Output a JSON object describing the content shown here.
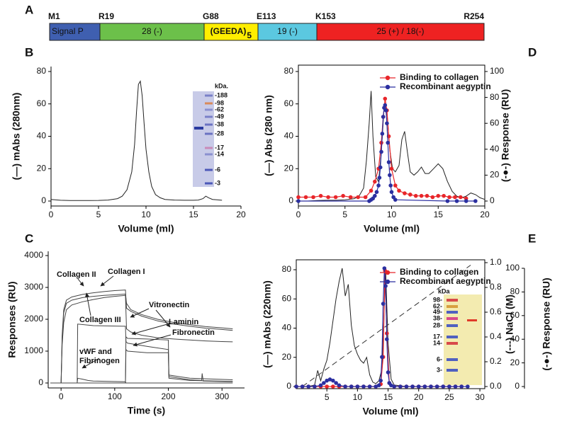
{
  "panel_labels": [
    "A",
    "B",
    "C",
    "D",
    "E"
  ],
  "domain_map": {
    "residues": [
      "M1",
      "R19",
      "G88",
      "E113",
      "K153",
      "R254"
    ],
    "domains": [
      {
        "label": "Signal P",
        "color": "#3f5fb0"
      },
      {
        "label": "28 (-)",
        "color": "#6cc04a"
      },
      {
        "label": "(GEEDA)",
        "subscript": "5",
        "color": "#ffee00"
      },
      {
        "label": "19 (-)",
        "color": "#5bc8e0"
      },
      {
        "label": "25 (+) / 18(-)",
        "color": "#ee2222"
      }
    ]
  },
  "chart_data": [
    {
      "type": "line",
      "xlabel": "Volume (ml)",
      "ylabel": "(—) mAbs (280nm)",
      "xlim": [
        0,
        20
      ],
      "xticks": [
        0,
        5,
        10,
        15,
        20
      ],
      "ylim": [
        0,
        80
      ],
      "yticks": [
        0,
        20,
        40,
        60,
        80
      ],
      "series": [
        {
          "color": "#222222",
          "x": [
            0,
            1,
            2,
            3,
            4,
            5,
            6,
            7,
            7.5,
            8,
            8.5,
            8.8,
            9,
            9.2,
            9.4,
            9.6,
            9.8,
            10,
            10.3,
            10.6,
            11,
            11.5,
            12,
            13,
            14,
            15,
            15.5,
            16,
            16.3,
            16.6,
            17,
            17.5,
            18
          ],
          "values": [
            1,
            0.5,
            0.3,
            0.3,
            0.3,
            0.4,
            0.6,
            1.5,
            3,
            7,
            18,
            35,
            55,
            72,
            74,
            65,
            48,
            32,
            18,
            9,
            4,
            2,
            1,
            0.6,
            0.5,
            0.5,
            0.6,
            1.5,
            3,
            2,
            1,
            0.8,
            0.5
          ]
        }
      ],
      "inset": {
        "title": "kDa.",
        "markers": [
          "-188",
          "-98",
          "-62",
          "-49",
          "-38",
          "-28",
          "-17",
          "-14",
          "-6",
          "-3"
        ]
      }
    },
    {
      "type": "line",
      "xlabel": "Volume (ml)",
      "ylabel": "(—) Abs (280 nm)",
      "y2label": "(-●-) Response (RU)",
      "xlim": [
        0,
        20
      ],
      "xticks": [
        0,
        5,
        10,
        15,
        20
      ],
      "ylim": [
        0,
        80
      ],
      "yticks": [
        0,
        20,
        40,
        60,
        80
      ],
      "y2lim": [
        0,
        100
      ],
      "y2ticks": [
        0,
        20,
        40,
        60,
        80,
        100
      ],
      "legend": "top-right",
      "series": [
        {
          "color": "#222222",
          "x": [
            0,
            1,
            2,
            3,
            4,
            5,
            6,
            6.5,
            7,
            7.3,
            7.6,
            7.8,
            8,
            8.3,
            8.6,
            8.9,
            9.2,
            9.5,
            9.8,
            10.1,
            10.4,
            10.8,
            11.1,
            11.4,
            11.7,
            12,
            12.4,
            12.8,
            13.2,
            13.6,
            14,
            14.5,
            15,
            15.5,
            16,
            16.5,
            17,
            17.5,
            18,
            18.5,
            19,
            19.5,
            20
          ],
          "values": [
            0,
            0,
            0.3,
            0.5,
            0.5,
            0.8,
            1.5,
            3,
            8,
            25,
            48,
            68,
            40,
            15,
            12,
            30,
            58,
            55,
            32,
            20,
            18,
            22,
            38,
            43,
            30,
            18,
            16,
            18,
            21,
            17,
            17,
            20,
            23,
            20,
            12,
            6,
            3,
            2,
            3,
            5,
            4,
            2,
            1
          ]
        },
        {
          "name": "Binding to collagen",
          "color": "#e8262a",
          "axis": "y2",
          "marker": "circle",
          "x": [
            0,
            0.8,
            1.6,
            2.4,
            3.2,
            4,
            4.8,
            5.6,
            6.4,
            7.2,
            7.8,
            8.2,
            8.6,
            8.9,
            9.1,
            9.3,
            9.5,
            9.7,
            10,
            10.4,
            10.8,
            11.4,
            12,
            12.6,
            13.2,
            13.8,
            14.4,
            15,
            15.6,
            16.2,
            16.8,
            17.4,
            18
          ],
          "values": [
            3,
            3,
            3,
            4,
            3,
            3,
            4,
            3,
            3,
            3,
            8,
            15,
            25,
            45,
            65,
            79,
            70,
            50,
            25,
            12,
            8,
            6,
            5,
            4,
            4,
            4,
            3,
            4,
            4,
            3,
            3,
            3,
            2
          ]
        },
        {
          "name": "Recombinant aegyptin",
          "color": "#2b2fa0",
          "axis": "y2",
          "marker": "circle",
          "x": [
            0,
            7.6,
            7.8,
            8,
            8.2,
            8.4,
            8.6,
            8.7,
            8.8,
            8.9,
            9,
            9.1,
            9.2,
            9.3,
            9.4,
            9.5,
            9.6,
            9.7,
            9.8,
            9.9,
            10,
            10.2,
            10.4,
            16,
            17,
            18,
            19
          ],
          "values": [
            0,
            0,
            1,
            2,
            4,
            7,
            12,
            18,
            26,
            38,
            52,
            65,
            72,
            74,
            70,
            60,
            45,
            30,
            20,
            12,
            7,
            3,
            1,
            0,
            0,
            0,
            0
          ]
        }
      ]
    },
    {
      "type": "line",
      "xlabel": "Time (s)",
      "ylabel": "Responses (RU)",
      "xlim": [
        -24,
        342
      ],
      "xticks": [
        0,
        100,
        200,
        300
      ],
      "ylim": [
        0,
        4000
      ],
      "yticks": [
        0,
        1000,
        2000,
        3000,
        4000
      ],
      "series": [
        {
          "name": "Collagen I",
          "color": "#444444",
          "x": [
            -20,
            0,
            2,
            5,
            10,
            20,
            40,
            60,
            80,
            100,
            120,
            122,
            130,
            150,
            180,
            210,
            240,
            270,
            300,
            320
          ],
          "values": [
            0,
            0,
            1500,
            2300,
            2600,
            2700,
            2780,
            2830,
            2870,
            2900,
            2920,
            2350,
            2250,
            2100,
            1950,
            1850,
            1780,
            1720,
            1680,
            1650
          ]
        },
        {
          "name": "Collagen II",
          "color": "#444444",
          "x": [
            -20,
            0,
            2,
            5,
            10,
            20,
            40,
            60,
            80,
            100,
            120,
            122,
            130,
            150,
            180,
            210,
            240,
            270,
            300,
            320
          ],
          "values": [
            0,
            0,
            1400,
            2200,
            2500,
            2600,
            2680,
            2720,
            2750,
            2770,
            2790,
            2500,
            2300,
            2150,
            2000,
            1900,
            1830,
            1770,
            1730,
            1700
          ]
        },
        {
          "name": "Collagen III",
          "color": "#444444",
          "x": [
            -20,
            0,
            2,
            5,
            10,
            20,
            40,
            60,
            80,
            100,
            120,
            122,
            130,
            150,
            180,
            210,
            240,
            270,
            300,
            320
          ],
          "values": [
            0,
            0,
            1200,
            1900,
            2300,
            2450,
            2550,
            2620,
            2680,
            2720,
            2750,
            1700,
            1600,
            1500,
            1420,
            1380,
            1350,
            1320,
            1300,
            1290
          ]
        },
        {
          "name": "Vitronectin",
          "color": "#444444",
          "x": [
            -20,
            120,
            121,
            124,
            160,
            200,
            201,
            240,
            320
          ],
          "values": [
            0,
            0,
            1450,
            1400,
            1380,
            1350,
            250,
            150,
            100
          ]
        },
        {
          "name": "Laminin",
          "color": "#444444",
          "x": [
            -20,
            30,
            31,
            60,
            120,
            121,
            124,
            160,
            200,
            201,
            240,
            262,
            263,
            265,
            320
          ],
          "values": [
            0,
            0,
            1850,
            1800,
            1780,
            1300,
            1250,
            1150,
            1050,
            200,
            100,
            80,
            300,
            60,
            40
          ]
        },
        {
          "name": "Fibronectin",
          "color": "#444444",
          "x": [
            -20,
            120,
            121,
            124,
            160,
            200,
            201,
            240,
            320
          ],
          "values": [
            0,
            0,
            1050,
            1000,
            950,
            950,
            150,
            80,
            50
          ]
        },
        {
          "name": "vWF and Fibrinogen",
          "color": "#444444",
          "x": [
            -20,
            30,
            31,
            40,
            50,
            60,
            120,
            121,
            200,
            320
          ],
          "values": [
            0,
            0,
            150,
            120,
            80,
            60,
            40,
            0,
            0,
            0
          ]
        }
      ]
    },
    {
      "type": "line",
      "xlabel": "Volume (ml)",
      "ylabel": "(—) mAbs (220nm)",
      "y2label": "(---) NaCl (M)",
      "y3label": "(-●-) Response (RU)",
      "xlim": [
        0,
        30.8
      ],
      "xticks": [
        5,
        10,
        15,
        20,
        25,
        30
      ],
      "ylim": [
        0,
        80
      ],
      "yticks": [
        0,
        20,
        40,
        60,
        80
      ],
      "y2lim": [
        0,
        1
      ],
      "y2ticks": [
        {
          "value": 0,
          "label": "0.0"
        },
        0.2,
        0.4,
        0.6,
        0.8,
        {
          "value": 1,
          "label": "1.0"
        }
      ],
      "y3lim": [
        0,
        100
      ],
      "y3ticks": [
        0,
        20,
        40,
        60,
        80,
        100
      ],
      "legend": "top-right",
      "series": [
        {
          "color": "#222222",
          "x": [
            0,
            1,
            2,
            3,
            3.5,
            4,
            4.5,
            5,
            5.5,
            6,
            6.5,
            7,
            7.5,
            8,
            8.5,
            9,
            9.5,
            10,
            10.5,
            11,
            11.5,
            12,
            12.5,
            13,
            13.5,
            14,
            14.3,
            14.6,
            15,
            15.5,
            16,
            18,
            20,
            22,
            24,
            26,
            28
          ],
          "values": [
            0,
            0,
            0,
            1,
            11,
            4,
            12,
            18,
            30,
            45,
            60,
            72,
            81,
            62,
            70,
            42,
            28,
            22,
            18,
            16,
            20,
            8,
            3,
            2,
            4,
            12,
            45,
            80,
            30,
            5,
            1,
            0,
            0,
            0,
            0,
            0,
            0
          ]
        },
        {
          "color": "#333333",
          "axis": "y2",
          "dash": true,
          "x": [
            1,
            28.5
          ],
          "values": [
            0,
            0.98
          ]
        },
        {
          "name": "Binding to collagen",
          "color": "#e8262a",
          "axis": "y3",
          "marker": "circle",
          "x": [
            0,
            1,
            2,
            3,
            4,
            5,
            6,
            7,
            8,
            9,
            10,
            11,
            12,
            13,
            13.8,
            14.2,
            14.5,
            14.8,
            15.2,
            16,
            17,
            18,
            19,
            20,
            21,
            22,
            23,
            24,
            25,
            26,
            27
          ],
          "values": [
            0,
            0,
            0,
            0,
            0,
            0,
            0,
            0,
            0,
            0,
            0,
            0,
            0,
            0,
            2,
            25,
            98,
            45,
            3,
            0,
            0,
            0,
            0,
            0,
            0,
            0,
            0,
            0,
            0,
            0,
            0
          ]
        },
        {
          "name": "Recombinant aegyptin",
          "color": "#2b2fa0",
          "axis": "y3",
          "marker": "circle",
          "x": [
            0,
            1,
            2,
            3,
            4,
            4.5,
            5,
            5.5,
            6,
            6.5,
            7,
            8,
            9,
            10,
            11,
            12,
            13,
            13.5,
            13.8,
            14,
            14.2,
            14.4,
            14.6,
            14.8,
            15,
            15.2,
            15.5,
            16,
            17,
            18,
            19,
            20,
            21,
            22,
            23,
            24,
            25,
            26,
            27,
            28
          ],
          "values": [
            0,
            0,
            0,
            0,
            1,
            3,
            5,
            6,
            5,
            3,
            1,
            0,
            0,
            0,
            0,
            0,
            0,
            1,
            5,
            25,
            70,
            100,
            85,
            40,
            12,
            3,
            1,
            0,
            0,
            0,
            0,
            0,
            0,
            0,
            0,
            0,
            0,
            0,
            0,
            0
          ]
        }
      ],
      "inset": {
        "title": "kDa",
        "markers": [
          "98-",
          "62-",
          "49-",
          "38-",
          "28-",
          "17-",
          "14-",
          "6-",
          "3-"
        ]
      }
    }
  ]
}
